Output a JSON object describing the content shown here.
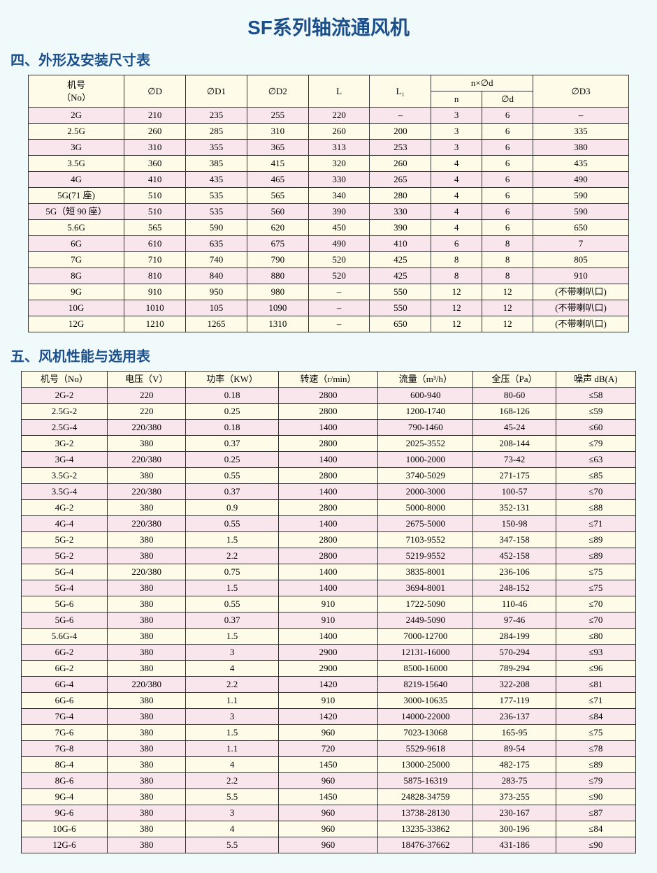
{
  "title": "SF系列轴流通风机",
  "section4": "四、外形及安装尺寸表",
  "section5": "五、风机性能与选用表",
  "t1": {
    "h": [
      "机号\n（No）",
      "∅D",
      "∅D1",
      "∅D2",
      "L",
      "L₁",
      "n×∅d",
      "n",
      "∅d",
      "∅D3"
    ],
    "rows": [
      [
        "2G",
        "210",
        "235",
        "255",
        "220",
        "–",
        "3",
        "6",
        "–"
      ],
      [
        "2.5G",
        "260",
        "285",
        "310",
        "260",
        "200",
        "3",
        "6",
        "335"
      ],
      [
        "3G",
        "310",
        "355",
        "365",
        "313",
        "253",
        "3",
        "6",
        "380"
      ],
      [
        "3.5G",
        "360",
        "385",
        "415",
        "320",
        "260",
        "4",
        "6",
        "435"
      ],
      [
        "4G",
        "410",
        "435",
        "465",
        "330",
        "265",
        "4",
        "6",
        "490"
      ],
      [
        "5G(71 座)",
        "510",
        "535",
        "565",
        "340",
        "280",
        "4",
        "6",
        "590"
      ],
      [
        "5G（短 90 座）",
        "510",
        "535",
        "560",
        "390",
        "330",
        "4",
        "6",
        "590"
      ],
      [
        "5.6G",
        "565",
        "590",
        "620",
        "450",
        "390",
        "4",
        "6",
        "650"
      ],
      [
        "6G",
        "610",
        "635",
        "675",
        "490",
        "410",
        "6",
        "8",
        "7"
      ],
      [
        "7G",
        "710",
        "740",
        "790",
        "520",
        "425",
        "8",
        "8",
        "805"
      ],
      [
        "8G",
        "810",
        "840",
        "880",
        "520",
        "425",
        "8",
        "8",
        "910"
      ],
      [
        "9G",
        "910",
        "950",
        "980",
        "–",
        "550",
        "12",
        "12",
        "(不带喇叭口)"
      ],
      [
        "10G",
        "1010",
        "105",
        "1090",
        "–",
        "550",
        "12",
        "12",
        "(不带喇叭口)"
      ],
      [
        "12G",
        "1210",
        "1265",
        "1310",
        "–",
        "650",
        "12",
        "12",
        "(不带喇叭口)"
      ]
    ]
  },
  "t2": {
    "h": [
      "机号（No）",
      "电压（V）",
      "功率（KW）",
      "转速（r/min）",
      "流量（m³/h）",
      "全压（Pa）",
      "噪声 dB(A)"
    ],
    "rows": [
      [
        "2G-2",
        "220",
        "0.18",
        "2800",
        "600-940",
        "80-60",
        "≤58"
      ],
      [
        "2.5G-2",
        "220",
        "0.25",
        "2800",
        "1200-1740",
        "168-126",
        "≤59"
      ],
      [
        "2.5G-4",
        "220/380",
        "0.18",
        "1400",
        "790-1460",
        "45-24",
        "≤60"
      ],
      [
        "3G-2",
        "380",
        "0.37",
        "2800",
        "2025-3552",
        "208-144",
        "≤79"
      ],
      [
        "3G-4",
        "220/380",
        "0.25",
        "1400",
        "1000-2000",
        "73-42",
        "≤63"
      ],
      [
        "3.5G-2",
        "380",
        "0.55",
        "2800",
        "3740-5029",
        "271-175",
        "≤85"
      ],
      [
        "3.5G-4",
        "220/380",
        "0.37",
        "1400",
        "2000-3000",
        "100-57",
        "≤70"
      ],
      [
        "4G-2",
        "380",
        "0.9",
        "2800",
        "5000-8000",
        "352-131",
        "≤88"
      ],
      [
        "4G-4",
        "220/380",
        "0.55",
        "1400",
        "2675-5000",
        "150-98",
        "≤71"
      ],
      [
        "5G-2",
        "380",
        "1.5",
        "2800",
        "7103-9552",
        "347-158",
        "≤89"
      ],
      [
        "5G-2",
        "380",
        "2.2",
        "2800",
        "5219-9552",
        "452-158",
        "≤89"
      ],
      [
        "5G-4",
        "220/380",
        "0.75",
        "1400",
        "3835-8001",
        "236-106",
        "≤75"
      ],
      [
        "5G-4",
        "380",
        "1.5",
        "1400",
        "3694-8001",
        "248-152",
        "≤75"
      ],
      [
        "5G-6",
        "380",
        "0.55",
        "910",
        "1722-5090",
        "110-46",
        "≤70"
      ],
      [
        "5G-6",
        "380",
        "0.37",
        "910",
        "2449-5090",
        "97-46",
        "≤70"
      ],
      [
        "5.6G-4",
        "380",
        "1.5",
        "1400",
        "7000-12700",
        "284-199",
        "≤80"
      ],
      [
        "6G-2",
        "380",
        "3",
        "2900",
        "12131-16000",
        "570-294",
        "≤93"
      ],
      [
        "6G-2",
        "380",
        "4",
        "2900",
        "8500-16000",
        "789-294",
        "≤96"
      ],
      [
        "6G-4",
        "220/380",
        "2.2",
        "1420",
        "8219-15640",
        "322-208",
        "≤81"
      ],
      [
        "6G-6",
        "380",
        "1.1",
        "910",
        "3000-10635",
        "177-119",
        "≤71"
      ],
      [
        "7G-4",
        "380",
        "3",
        "1420",
        "14000-22000",
        "236-137",
        "≤84"
      ],
      [
        "7G-6",
        "380",
        "1.5",
        "960",
        "7023-13068",
        "165-95",
        "≤75"
      ],
      [
        "7G-8",
        "380",
        "1.1",
        "720",
        "5529-9618",
        "89-54",
        "≤78"
      ],
      [
        "8G-4",
        "380",
        "4",
        "1450",
        "13000-25000",
        "482-175",
        "≤89"
      ],
      [
        "8G-6",
        "380",
        "2.2",
        "960",
        "5875-16319",
        "283-75",
        "≤79"
      ],
      [
        "9G-4",
        "380",
        "5.5",
        "1450",
        "24828-34759",
        "373-255",
        "≤90"
      ],
      [
        "9G-6",
        "380",
        "3",
        "960",
        "13738-28130",
        "230-167",
        "≤87"
      ],
      [
        "10G-6",
        "380",
        "4",
        "960",
        "13235-33862",
        "300-196",
        "≤84"
      ],
      [
        "12G-6",
        "380",
        "5.5",
        "960",
        "18476-37662",
        "431-186",
        "≤90"
      ]
    ]
  }
}
